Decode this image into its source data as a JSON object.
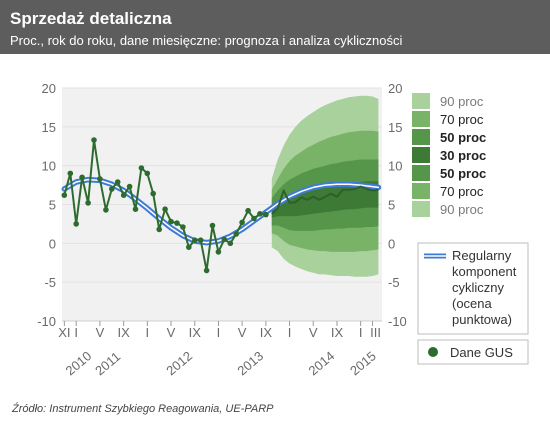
{
  "header": {
    "title": "Sprzedaż detaliczna",
    "subtitle": "Proc., rok do roku, dane miesięczne: prognoza i analiza cykliczności"
  },
  "source": "Źródło: Instrument Szybkiego Reagowania, UE-PARP",
  "colors": {
    "header_bg": "#5d5d5d",
    "header_text": "#ffffff",
    "plot_bg": "#f1f1f1",
    "cycle_line": "#3f7bd6",
    "data_line": "#2e6b2e",
    "band_90": "#a9d19b",
    "band_70": "#79b368",
    "band_50": "#55964a",
    "band_30": "#3c7a35",
    "grid": "#e2e2e2",
    "axis_text": "#6a6a6a"
  },
  "legend": {
    "bands": [
      {
        "label": "90 proc",
        "weight": "normal",
        "tone": "90"
      },
      {
        "label": "70 proc",
        "weight": "normal",
        "tone": "70"
      },
      {
        "label": "50 proc",
        "weight": "bold",
        "tone": "50"
      },
      {
        "label": "30 proc",
        "weight": "bold",
        "tone": "30"
      },
      {
        "label": "50 proc",
        "weight": "bold",
        "tone": "50"
      },
      {
        "label": "70 proc",
        "weight": "normal",
        "tone": "70"
      },
      {
        "label": "90 proc",
        "weight": "normal",
        "tone": "90"
      }
    ],
    "cycle": [
      "Regularny",
      "komponent",
      "cykliczny",
      "(ocena",
      "punktowa)"
    ],
    "gus": "Dane GUS"
  },
  "chart_data": {
    "type": "line",
    "ylim": [
      -10,
      20
    ],
    "y_ticks": [
      -10,
      -5,
      0,
      5,
      10,
      15,
      20
    ],
    "x_range": [
      2010.8,
      2015.3
    ],
    "month_ticks": [
      {
        "x": 2010.833,
        "label": "XI"
      },
      {
        "x": 2011.0,
        "label": "I"
      },
      {
        "x": 2011.333,
        "label": "V"
      },
      {
        "x": 2011.667,
        "label": "IX"
      },
      {
        "x": 2012.0,
        "label": "I"
      },
      {
        "x": 2012.333,
        "label": "V"
      },
      {
        "x": 2012.667,
        "label": "IX"
      },
      {
        "x": 2013.0,
        "label": "I"
      },
      {
        "x": 2013.333,
        "label": "V"
      },
      {
        "x": 2013.667,
        "label": "IX"
      },
      {
        "x": 2014.0,
        "label": "I"
      },
      {
        "x": 2014.333,
        "label": "V"
      },
      {
        "x": 2014.667,
        "label": "IX"
      },
      {
        "x": 2015.0,
        "label": "I"
      },
      {
        "x": 2015.167,
        "label": "III"
      }
    ],
    "year_labels": [
      {
        "x": 2010.917,
        "label": "2010"
      },
      {
        "x": 2011.333,
        "label": "2011"
      },
      {
        "x": 2012.333,
        "label": "2012"
      },
      {
        "x": 2013.333,
        "label": "2013"
      },
      {
        "x": 2014.333,
        "label": "2014"
      },
      {
        "x": 2014.917,
        "label": "2015"
      }
    ],
    "gus_data": {
      "name": "Dane GUS",
      "x": [
        2010.833,
        2010.917,
        2011.0,
        2011.083,
        2011.167,
        2011.25,
        2011.333,
        2011.417,
        2011.5,
        2011.583,
        2011.667,
        2011.75,
        2011.833,
        2011.917,
        2012.0,
        2012.083,
        2012.167,
        2012.25,
        2012.333,
        2012.417,
        2012.5,
        2012.583,
        2012.667,
        2012.75,
        2012.833,
        2012.917,
        2013.0,
        2013.083,
        2013.167,
        2013.25,
        2013.333,
        2013.417,
        2013.5,
        2013.583,
        2013.667
      ],
      "y": [
        6.2,
        9.0,
        2.5,
        8.5,
        5.2,
        13.3,
        8.3,
        4.3,
        7.0,
        7.9,
        6.2,
        7.3,
        4.4,
        9.7,
        9.0,
        6.4,
        1.8,
        4.4,
        2.8,
        2.6,
        2.1,
        -0.5,
        0.4,
        0.4,
        -3.5,
        2.3,
        -1.1,
        0.5,
        0.0,
        1.2,
        2.7,
        4.2,
        3.2,
        3.8,
        3.7
      ]
    },
    "cycle": {
      "name": "Regularny komponent cykliczny (ocena punktowa)",
      "x": [
        2010.833,
        2011.0,
        2011.167,
        2011.333,
        2011.5,
        2011.667,
        2011.833,
        2012.0,
        2012.167,
        2012.333,
        2012.5,
        2012.667,
        2012.833,
        2013.0,
        2013.167,
        2013.333,
        2013.5,
        2013.667,
        2013.833,
        2014.0,
        2014.167,
        2014.333,
        2014.5,
        2014.667,
        2014.833,
        2015.0,
        2015.167,
        2015.25
      ],
      "y": [
        7.0,
        7.9,
        8.2,
        8.1,
        7.6,
        6.8,
        5.7,
        4.5,
        3.2,
        2.0,
        1.0,
        0.3,
        0.1,
        0.3,
        0.9,
        1.8,
        2.9,
        4.0,
        5.1,
        6.0,
        6.7,
        7.2,
        7.5,
        7.6,
        7.6,
        7.5,
        7.3,
        7.2
      ]
    },
    "forecast": {
      "x": [
        2013.75,
        2013.833,
        2013.917,
        2014.0,
        2014.083,
        2014.167,
        2014.25,
        2014.333,
        2014.417,
        2014.5,
        2014.583,
        2014.667,
        2014.75,
        2014.833,
        2014.917,
        2015.0,
        2015.083,
        2015.167,
        2015.25
      ],
      "p05": [
        -0.5,
        -1.0,
        -2.0,
        -2.6,
        -3.0,
        -3.3,
        -3.6,
        -3.8,
        -4.0,
        -4.0,
        -4.1,
        -4.2,
        -4.2,
        -4.2,
        -4.3,
        -4.3,
        -4.3,
        -4.2,
        -4.0
      ],
      "p15": [
        1.3,
        1.0,
        0.3,
        -0.2,
        -0.4,
        -0.6,
        -0.8,
        -0.9,
        -1.0,
        -1.0,
        -1.1,
        -1.1,
        -1.1,
        -1.1,
        -1.1,
        -1.0,
        -1.0,
        -0.9,
        -0.8
      ],
      "p25": [
        2.3,
        2.3,
        2.0,
        1.7,
        1.6,
        1.6,
        1.6,
        1.6,
        1.7,
        1.8,
        1.8,
        1.9,
        1.9,
        2.0,
        2.0,
        2.0,
        2.1,
        2.1,
        2.2
      ],
      "p35": [
        3.3,
        3.5,
        3.5,
        3.5,
        3.5,
        3.6,
        3.7,
        3.8,
        3.9,
        4.0,
        4.1,
        4.2,
        4.3,
        4.4,
        4.4,
        4.5,
        4.6,
        4.6,
        4.6
      ],
      "p65": [
        4.8,
        5.4,
        5.8,
        6.1,
        6.4,
        6.7,
        6.9,
        7.1,
        7.3,
        7.4,
        7.5,
        7.6,
        7.7,
        7.8,
        7.9,
        7.9,
        8.0,
        8.0,
        8.0
      ],
      "p75": [
        5.8,
        6.8,
        7.6,
        8.2,
        8.6,
        9.0,
        9.3,
        9.6,
        9.8,
        10.0,
        10.2,
        10.3,
        10.5,
        10.6,
        10.7,
        10.8,
        10.8,
        10.8,
        10.8
      ],
      "p85": [
        6.9,
        8.3,
        9.6,
        10.6,
        11.3,
        11.8,
        12.3,
        12.7,
        13.1,
        13.4,
        13.7,
        13.9,
        14.1,
        14.3,
        14.4,
        14.5,
        14.5,
        14.5,
        14.4
      ],
      "p95": [
        8.3,
        10.8,
        12.6,
        14.0,
        15.0,
        15.8,
        16.4,
        16.9,
        17.4,
        17.8,
        18.1,
        18.4,
        18.6,
        18.8,
        18.9,
        19.0,
        19.0,
        18.9,
        18.6
      ],
      "median": [
        3.8,
        4.5,
        6.8,
        5.2,
        5.3,
        5.9,
        5.6,
        6.0,
        5.6,
        6.0,
        6.4,
        6.0,
        6.9,
        6.9,
        7.0,
        7.3,
        7.0,
        6.8,
        6.9
      ]
    }
  }
}
